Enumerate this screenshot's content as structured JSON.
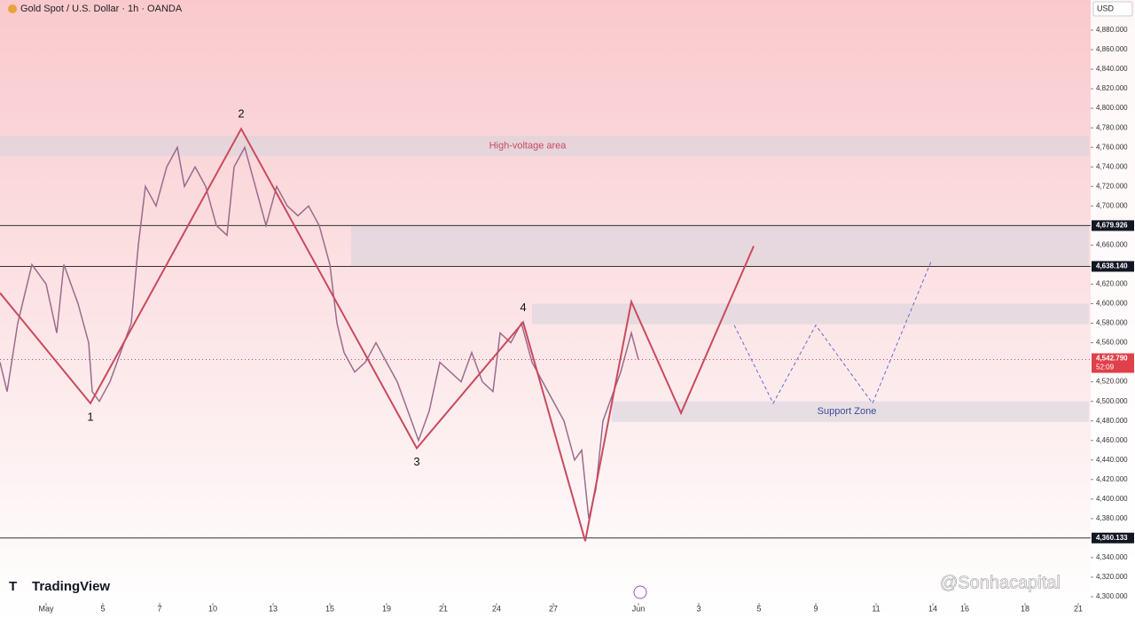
{
  "chart_data": {
    "type": "line",
    "title": "Gold Spot / U.S. Dollar · 1h · OANDA",
    "currency": "USD",
    "brand": "TradingView",
    "watermark": "@Sonhacapital",
    "x": [
      0,
      2,
      5,
      9,
      13,
      16,
      18,
      22,
      25,
      26,
      28,
      31,
      34,
      37,
      39,
      41,
      44,
      47,
      50,
      52,
      55,
      58,
      61,
      64,
      66,
      69,
      72,
      75,
      78,
      81,
      84,
      87,
      90,
      93,
      95,
      97,
      100,
      103,
      106,
      109,
      112,
      115,
      118,
      121,
      124,
      127,
      130,
      133,
      136,
      139,
      141,
      144,
      147,
      150,
      153,
      156,
      159,
      162,
      164,
      166,
      168,
      170,
      172,
      175,
      178,
      180
    ],
    "series": [
      {
        "name": "Gold Spot",
        "color": "#9c6b8c",
        "values": [
          4540,
          4510,
          4580,
          4640,
          4620,
          4570,
          4640,
          4600,
          4560,
          4510,
          4500,
          4520,
          4550,
          4580,
          4660,
          4720,
          4700,
          4740,
          4760,
          4720,
          4740,
          4720,
          4680,
          4670,
          4740,
          4760,
          4720,
          4680,
          4720,
          4700,
          4690,
          4700,
          4680,
          4640,
          4580,
          4550,
          4530,
          4540,
          4560,
          4540,
          4520,
          4490,
          4460,
          4490,
          4540,
          4530,
          4520,
          4550,
          4520,
          4510,
          4570,
          4560,
          4580,
          4540,
          4520,
          4500,
          4480,
          4440,
          4450,
          4380,
          4410,
          4480,
          4500,
          4530,
          4570,
          4542.79
        ]
      }
    ],
    "xlim": [
      0,
      307
    ],
    "ylim": [
      4300,
      4880
    ],
    "xticks": [
      {
        "value": 13,
        "label": "May"
      },
      {
        "value": 29,
        "label": "5"
      },
      {
        "value": 45,
        "label": "7"
      },
      {
        "value": 60,
        "label": "10"
      },
      {
        "value": 77,
        "label": "13"
      },
      {
        "value": 93,
        "label": "15"
      },
      {
        "value": 109,
        "label": "19"
      },
      {
        "value": 125,
        "label": "21"
      },
      {
        "value": 140,
        "label": "24"
      },
      {
        "value": 156,
        "label": "27"
      },
      {
        "value": 180,
        "label": "Jun"
      },
      {
        "value": 197,
        "label": "3"
      },
      {
        "value": 214,
        "label": "5"
      },
      {
        "value": 230,
        "label": "9"
      },
      {
        "value": 247,
        "label": "11"
      },
      {
        "value": 263,
        "label": "14"
      },
      {
        "value": 272,
        "label": "16"
      },
      {
        "value": 289,
        "label": "18"
      },
      {
        "value": 304,
        "label": "21"
      }
    ],
    "yticks": [
      {
        "value": 4880,
        "label": "4,880.000"
      },
      {
        "value": 4860,
        "label": "4,860.000"
      },
      {
        "value": 4840,
        "label": "4,840.000"
      },
      {
        "value": 4820,
        "label": "4,820.000"
      },
      {
        "value": 4800,
        "label": "4,800.000"
      },
      {
        "value": 4780,
        "label": "4,780.000"
      },
      {
        "value": 4760,
        "label": "4,760.000"
      },
      {
        "value": 4740,
        "label": "4,740.000"
      },
      {
        "value": 4720,
        "label": "4,720.000"
      },
      {
        "value": 4700,
        "label": "4,700.000"
      },
      {
        "value": 4660,
        "label": "4,660.000"
      },
      {
        "value": 4620,
        "label": "4,620.000"
      },
      {
        "value": 4600,
        "label": "4,600.000"
      },
      {
        "value": 4580,
        "label": "4,580.000"
      },
      {
        "value": 4560,
        "label": "4,560.000"
      },
      {
        "value": 4520,
        "label": "4,520.000"
      },
      {
        "value": 4500,
        "label": "4,500.000"
      },
      {
        "value": 4480,
        "label": "4,480.000"
      },
      {
        "value": 4460,
        "label": "4,460.000"
      },
      {
        "value": 4440,
        "label": "4,440.000"
      },
      {
        "value": 4420,
        "label": "4,420.000"
      },
      {
        "value": 4400,
        "label": "4,400.000"
      },
      {
        "value": 4380,
        "label": "4,380.000"
      },
      {
        "value": 4340,
        "label": "4,340.000"
      },
      {
        "value": 4320,
        "label": "4,320.000"
      },
      {
        "value": 4300,
        "label": "4,300.000"
      }
    ],
    "levels": [
      {
        "value": 4679.926,
        "label": "4,679.926"
      },
      {
        "value": 4638.14,
        "label": "4,638.140"
      },
      {
        "value": 4360.133,
        "label": "4,360.133"
      }
    ],
    "last_price": {
      "value": 4542.79,
      "label": "4,542.790",
      "countdown": "52:09"
    },
    "zones": [
      {
        "label": "High-voltage area",
        "xlim": [
          0,
          307
        ],
        "ylim": [
          4751,
          4772
        ]
      },
      {
        "xlim": [
          99,
          307
        ],
        "ylim": [
          4638.14,
          4679.926
        ]
      },
      {
        "xlim": [
          150,
          307
        ],
        "ylim": [
          4579,
          4600
        ]
      },
      {
        "label": "Support Zone",
        "xlim": [
          172.5,
          307
        ],
        "ylim": [
          4479,
          4500
        ]
      }
    ],
    "wave": {
      "color": "#c94a5e",
      "x": [
        0,
        25.5,
        68,
        117.5,
        147.5,
        165,
        178,
        192,
        212.5
      ],
      "values": [
        4611,
        4498,
        4779,
        4452,
        4581,
        4357,
        4602,
        4488,
        4659
      ]
    },
    "wave_labels": [
      "1",
      "2",
      "3",
      "4"
    ],
    "projection": {
      "color": "#6a6ad0",
      "x": [
        207,
        218,
        230,
        246,
        262.5
      ],
      "values": [
        4578,
        4498,
        4578,
        4498,
        4643
      ]
    }
  }
}
